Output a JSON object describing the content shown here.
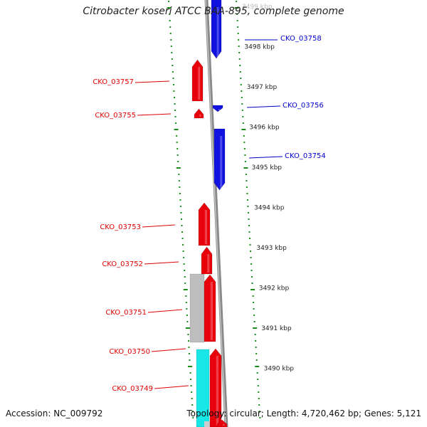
{
  "title": "Citrobacter koseri ATCC BAA-895, complete genome",
  "accession": "Accession: NC_009792",
  "topology": "Topology: circular; Length: 4,720,462 bp; Genes: 5,121",
  "colors": {
    "forward": "#e8000b",
    "reverse": "#1212e0",
    "grey_feature": "#bdbdbd",
    "cyan_feature": "#19e6e6",
    "backbone": "#8a8a8a",
    "tick": "#1a8a1a",
    "label_forward": "#e00000",
    "label_reverse": "#0000cc"
  },
  "scale_labels": [
    "3499 kbp",
    "3498 kbp",
    "3497 kbp",
    "3496 kbp",
    "3495 kbp",
    "3494 kbp",
    "3493 kbp",
    "3492 kbp",
    "3491 kbp",
    "3490 kbp"
  ],
  "genes": [
    {
      "label": "CKO_03758",
      "strand": "reverse"
    },
    {
      "label": "CKO_03757",
      "strand": "forward"
    },
    {
      "label": "CKO_03756",
      "strand": "reverse"
    },
    {
      "label": "CKO_03755",
      "strand": "forward"
    },
    {
      "label": "CKO_03754",
      "strand": "reverse"
    },
    {
      "label": "CKO_03753",
      "strand": "forward"
    },
    {
      "label": "CKO_03752",
      "strand": "forward"
    },
    {
      "label": "CKO_03751",
      "strand": "forward"
    },
    {
      "label": "CKO_03750",
      "strand": "forward"
    },
    {
      "label": "CKO_03749",
      "strand": "forward"
    }
  ]
}
